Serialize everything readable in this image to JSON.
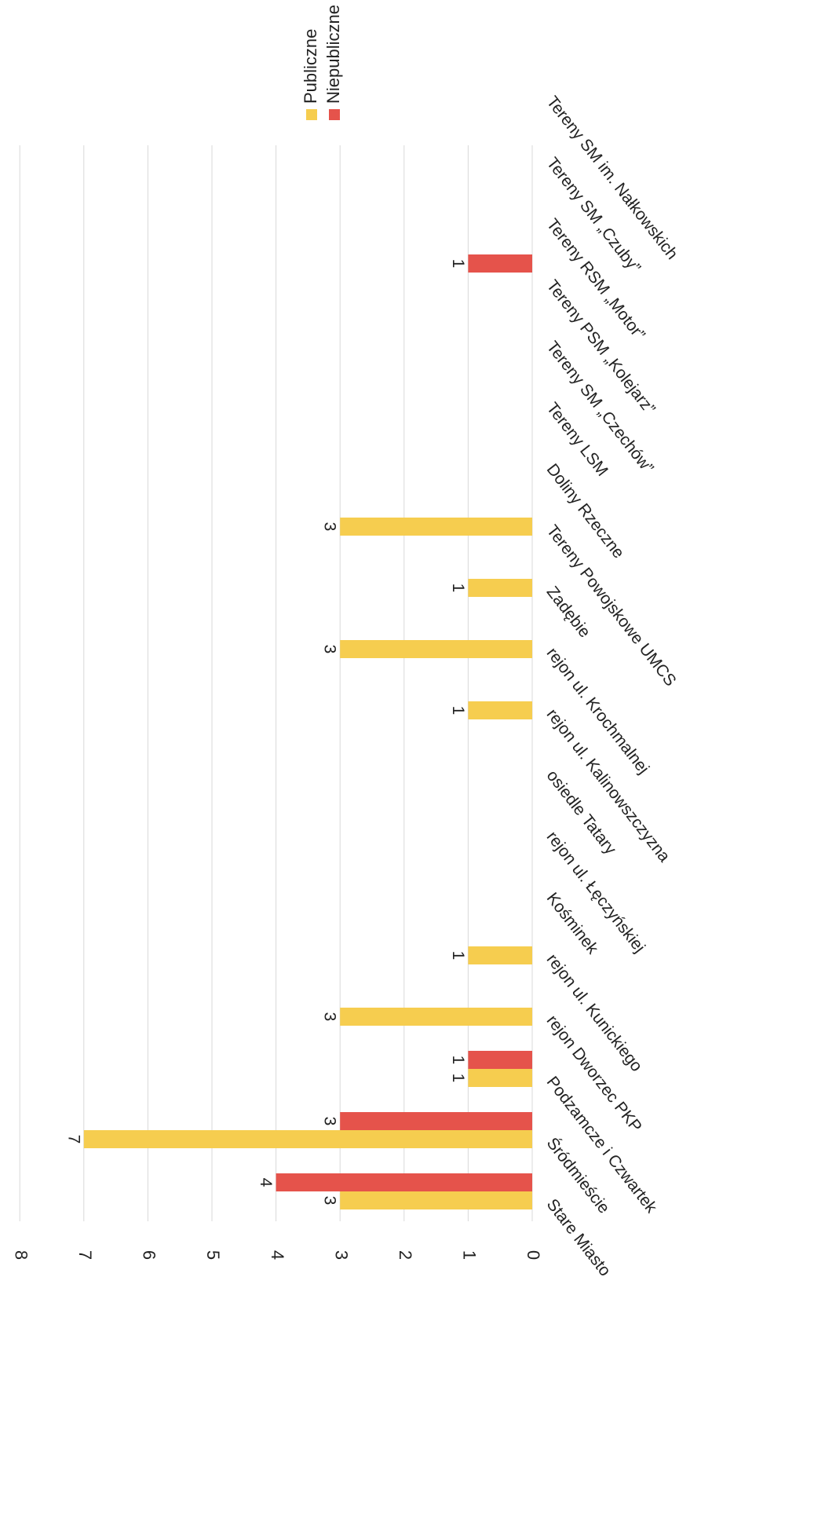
{
  "chart_data": {
    "type": "bar",
    "orientation": "horizontal, page rotated",
    "categories": [
      "Stare Miasto",
      "Śródmieście",
      "Podzamcze i Czwartek",
      "rejon Dworzec PKP",
      "rejon ul. Kunickiego",
      "Kośminek",
      "rejon ul. Łęczyńskiej",
      "osiedle Tatary",
      "rejon ul. Kalinowszczyzna",
      "rejon ul. Krochmalnej",
      "Zadębie",
      "Tereny Powojskowe UMCS",
      "Doliny Rzeczne",
      "Tereny LSM",
      "Tereny SM „Czechów”",
      "Tereny PSM „Kolejarz”",
      "Tereny RSM „Motor”",
      "Tereny SM „Czuby”",
      "Tereny SM im. Nałkowskich"
    ],
    "series": [
      {
        "name": "Publiczne",
        "color": "#F6CD4F",
        "values": [
          3,
          7,
          1,
          3,
          1,
          0,
          0,
          0,
          1,
          3,
          1,
          3,
          0,
          0,
          0,
          0,
          0,
          0,
          0
        ]
      },
      {
        "name": "Niepubliczne",
        "color": "#E5534B",
        "values": [
          4,
          3,
          1,
          0,
          0,
          0,
          0,
          0,
          0,
          0,
          0,
          0,
          0,
          0,
          0,
          1,
          0,
          0,
          0
        ]
      }
    ],
    "ticks": [
      "8",
      "7",
      "6",
      "5",
      "4",
      "3",
      "2",
      "1",
      "0"
    ],
    "ylim": [
      0,
      8
    ],
    "grid": true,
    "legend": "top-right"
  }
}
